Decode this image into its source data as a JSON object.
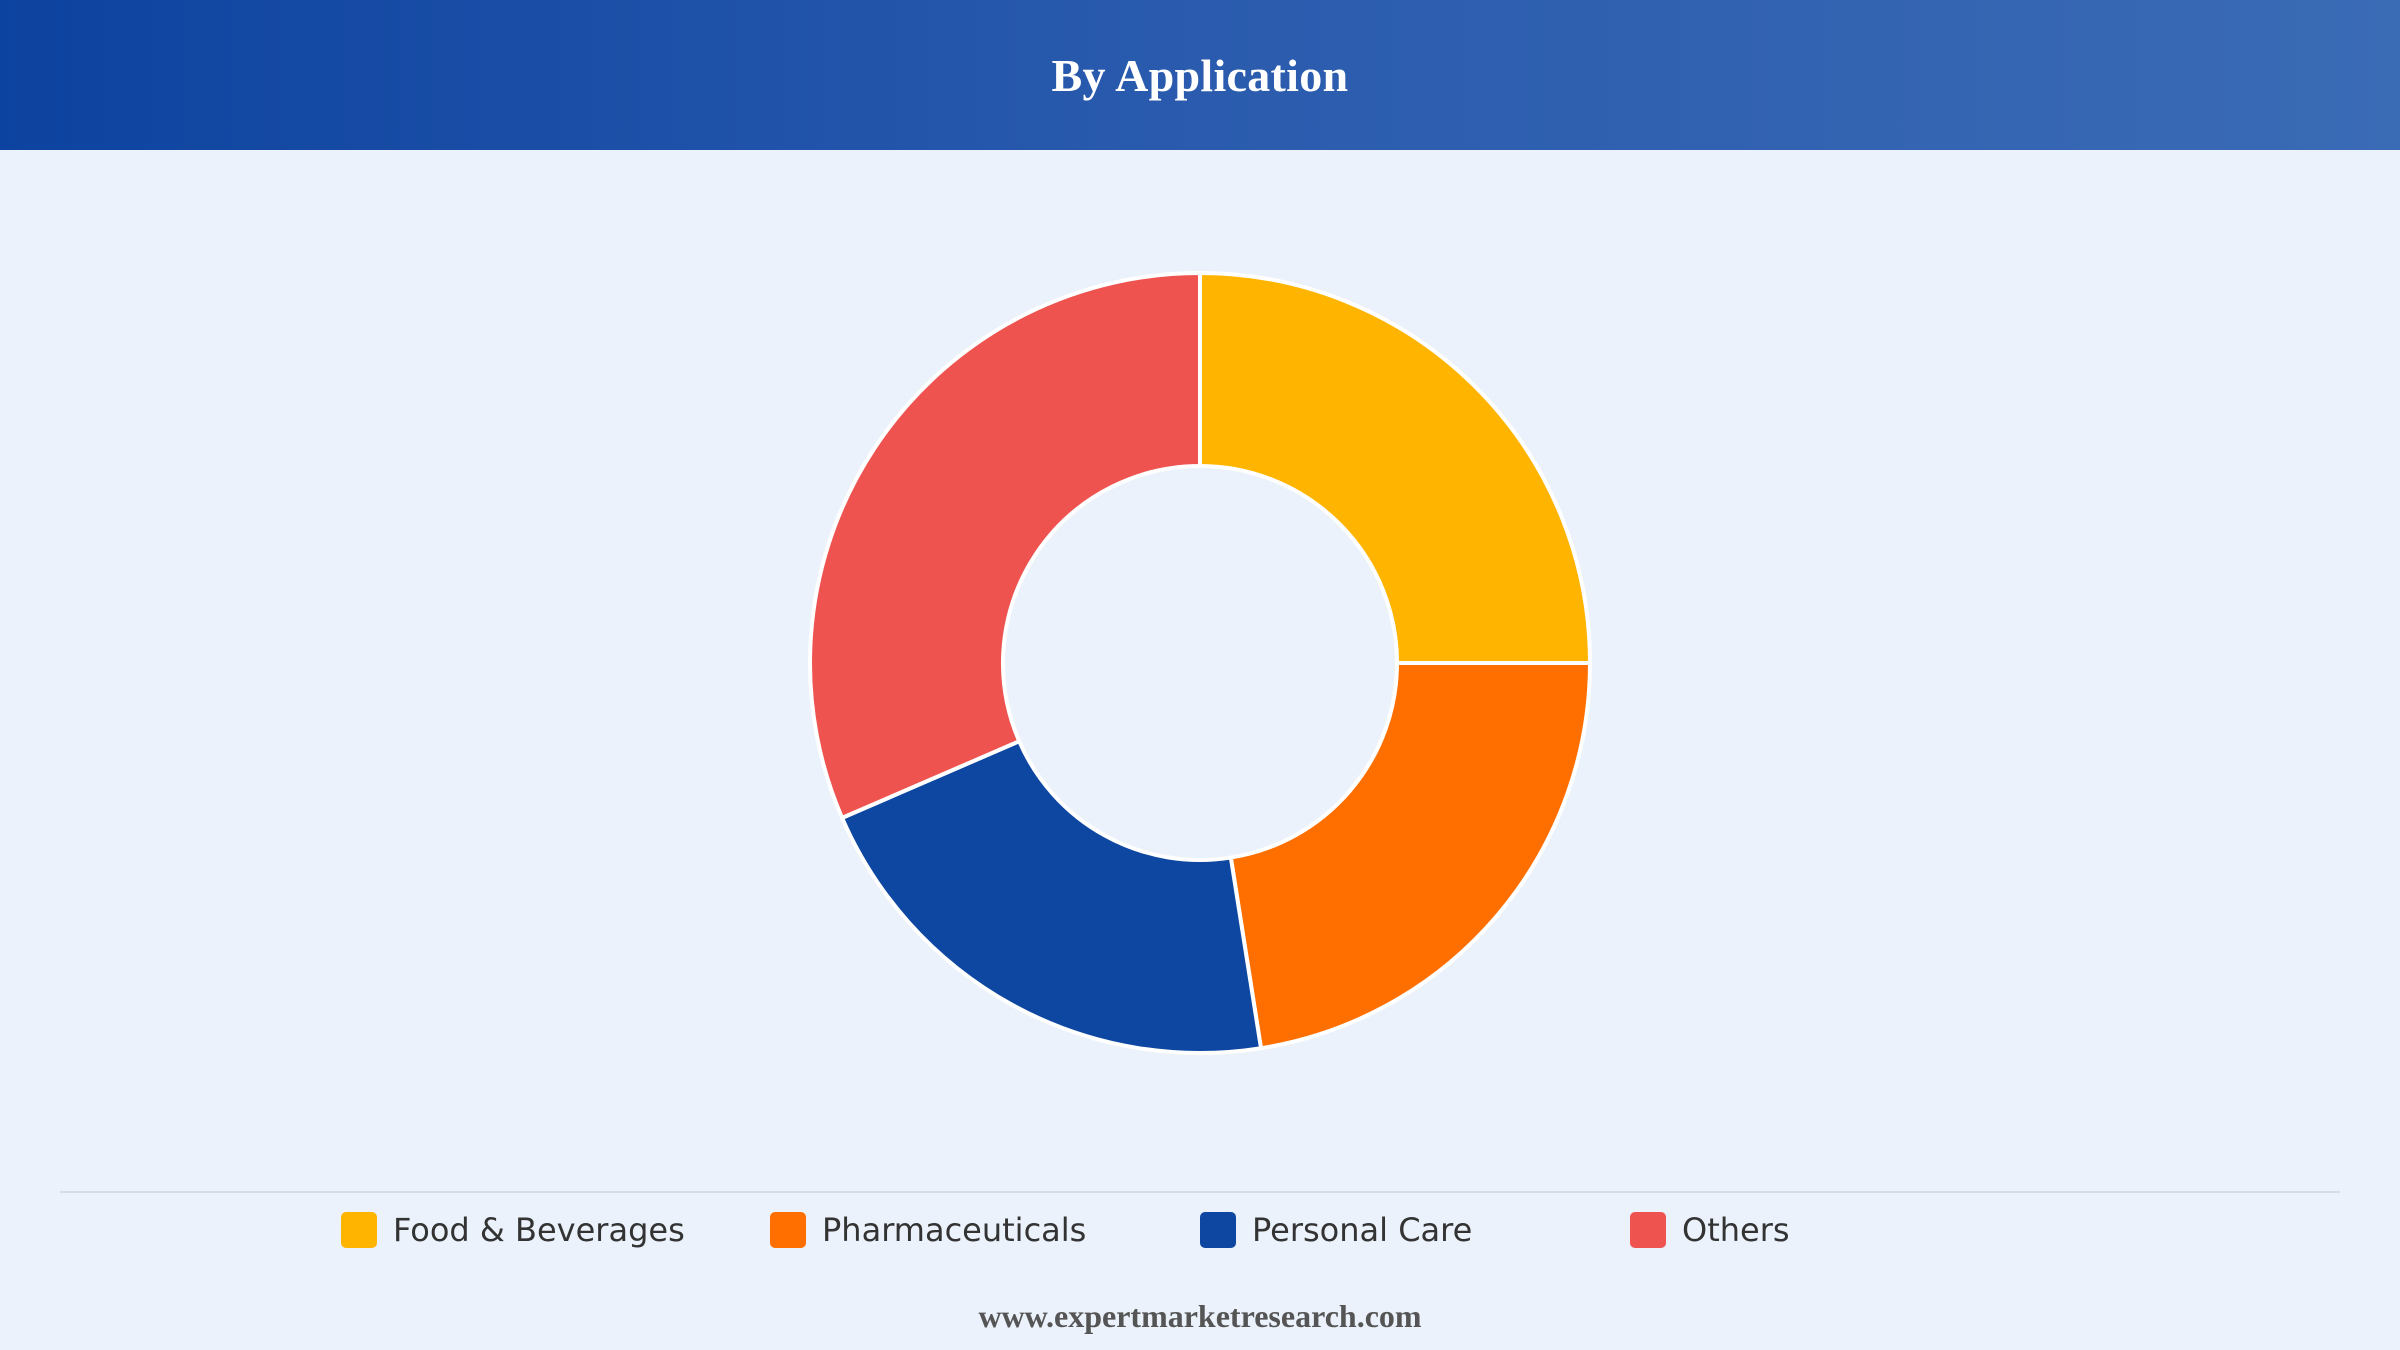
{
  "header": {
    "title": "By Application"
  },
  "chart_data": {
    "type": "pie",
    "variant": "donut",
    "title": "By Application",
    "categories": [
      "Food & Beverages",
      "Pharmaceuticals",
      "Personal Care",
      "Others"
    ],
    "values": [
      25,
      22.5,
      21,
      31.5
    ],
    "colors": [
      "#FFB400",
      "#FF6F00",
      "#0D47A1",
      "#EF5350"
    ],
    "legend_position": "bottom",
    "start_angle": "12 o'clock",
    "direction": "clockwise"
  },
  "legend": {
    "items": [
      {
        "label": "Food & Beverages",
        "color": "#FFB400"
      },
      {
        "label": "Pharmaceuticals",
        "color": "#FF6F00"
      },
      {
        "label": "Personal Care",
        "color": "#0D47A1"
      },
      {
        "label": "Others",
        "color": "#EF5350"
      }
    ]
  },
  "footer": {
    "text": "www.expertmarketresearch.com"
  }
}
